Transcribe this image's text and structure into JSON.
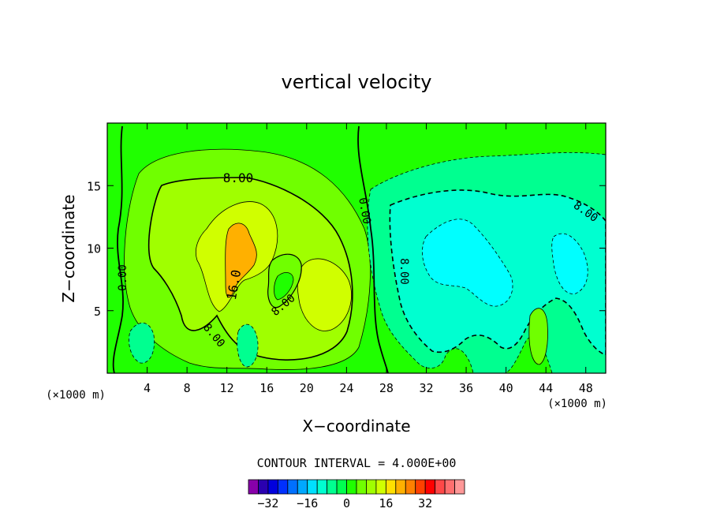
{
  "chart_data": {
    "type": "heatmap",
    "title": "vertical velocity",
    "xlabel": "X−coordinate",
    "ylabel": "Z−coordinate",
    "x_unit": "(×1000 m)",
    "x_unit_right": "(×1000 m)",
    "xlim": [
      0,
      50
    ],
    "ylim": [
      0,
      20
    ],
    "x_ticks": [
      4,
      8,
      12,
      16,
      20,
      24,
      28,
      32,
      36,
      40,
      44,
      48
    ],
    "y_ticks": [
      5,
      10,
      15
    ],
    "contour_interval_text": "CONTOUR INTERVAL = 4.000E+00",
    "contour_labels": [
      "8.00",
      "0.00",
      "16.0",
      "8.00",
      "8.00",
      "0.00",
      "8.00",
      "8.00"
    ],
    "colorbar": {
      "levels": [
        -36,
        -32,
        -28,
        -24,
        -20,
        -16,
        -12,
        -8,
        -4,
        0,
        4,
        8,
        12,
        16,
        20,
        24,
        28,
        32,
        36
      ],
      "tick_labels": [
        "−32",
        "−16",
        "0",
        "16",
        "32"
      ],
      "tick_values": [
        -32,
        -16,
        0,
        16,
        32
      ],
      "colors": [
        "#8800aa",
        "#2a00b0",
        "#0000dd",
        "#0030ff",
        "#0070ff",
        "#00a8ff",
        "#00e0ff",
        "#00ffd0",
        "#00ff90",
        "#00ff50",
        "#20ff00",
        "#70ff00",
        "#a0ff00",
        "#d0ff00",
        "#ffe000",
        "#ffb000",
        "#ff8000",
        "#ff4000",
        "#ff0000",
        "#ff4848",
        "#ff6f6f",
        "#ff9898"
      ]
    },
    "background_color": "#20ff00"
  }
}
